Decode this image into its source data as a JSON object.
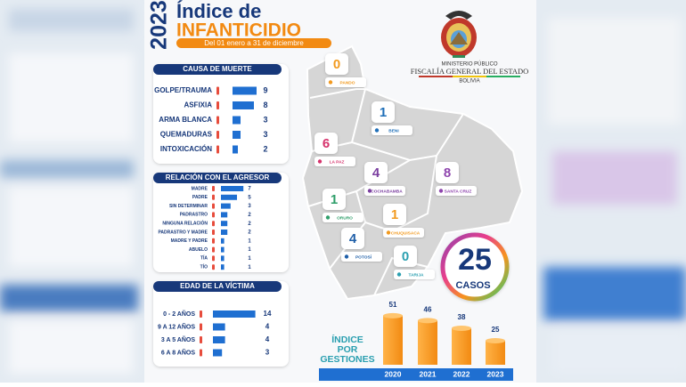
{
  "header": {
    "year": "2023",
    "title_line1": "Índice de",
    "title_line2": "INFANTICIDIO",
    "period": "Del 01 enero a 31 de diciembre"
  },
  "institution": {
    "line1": "MINISTERIO PÚBLICO",
    "line2": "FISCALÍA GENERAL DEL ESTADO",
    "line3": "BOLIVIA"
  },
  "map": {
    "regions": [
      {
        "name": "PANDO",
        "value": 0,
        "color": "#f29a1f"
      },
      {
        "name": "BENI",
        "value": 1,
        "color": "#1f6fb8"
      },
      {
        "name": "LA PAZ",
        "value": 6,
        "color": "#d6336c"
      },
      {
        "name": "COCHABAMBA",
        "value": 4,
        "color": "#7b3fa0"
      },
      {
        "name": "SANTA CRUZ",
        "value": 8,
        "color": "#8e44ad"
      },
      {
        "name": "ORURO",
        "value": 1,
        "color": "#2e9e6a"
      },
      {
        "name": "CHUQUISACA",
        "value": 1,
        "color": "#f29a1f"
      },
      {
        "name": "POTOSÍ",
        "value": 4,
        "color": "#1f5fa8"
      },
      {
        "name": "TARIJA",
        "value": 0,
        "color": "#2a9fb0"
      }
    ]
  },
  "total": {
    "value": 25,
    "label": "CASOS"
  },
  "chart_data": [
    {
      "type": "hbar",
      "title": "CAUSA DE MUERTE",
      "color": "#1f6fd1",
      "categories": [
        "GOLPE/TRAUMA",
        "ASFIXIA",
        "ARMA BLANCA",
        "QUEMADURAS",
        "INTOXICACIÓN"
      ],
      "values": [
        9,
        8,
        3,
        3,
        2
      ]
    },
    {
      "type": "hbar",
      "title": "RELACIÓN CON EL AGRESOR",
      "color": "#1f6fd1",
      "categories": [
        "MADRE",
        "PADRE",
        "SIN DETERMINAR",
        "PADRASTRO",
        "NINGUNA RELACIÓN",
        "PADRASTRO Y MADRE",
        "MADRE Y PADRE",
        "ABUELO",
        "TÍA",
        "TÍO"
      ],
      "values": [
        7,
        5,
        3,
        2,
        2,
        2,
        1,
        1,
        1,
        1
      ]
    },
    {
      "type": "hbar",
      "title": "EDAD DE LA VÍCTIMA",
      "color": "#1f6fd1",
      "categories": [
        "0 - 2 AÑOS",
        "9 A 12 AÑOS",
        "3 A 5 AÑOS",
        "6 A 8 AÑOS"
      ],
      "values": [
        14,
        4,
        4,
        3
      ]
    },
    {
      "type": "bar3d",
      "title": "ÍNDICE POR GESTIONES",
      "color": "#f7931e",
      "categories": [
        "2020",
        "2021",
        "2022",
        "2023"
      ],
      "values": [
        51,
        46,
        38,
        25
      ]
    }
  ]
}
